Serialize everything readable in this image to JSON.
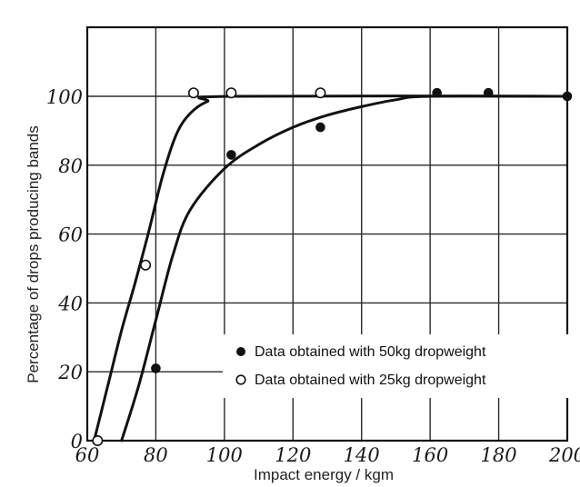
{
  "chart_data": {
    "type": "scatter",
    "title": "",
    "xlabel": "Impact energy / kgm",
    "ylabel": "Percentage of drops producing bands",
    "xlim": [
      60,
      200
    ],
    "ylim": [
      0,
      100
    ],
    "x_ticks": [
      "60",
      "80",
      "100",
      "120",
      "140",
      "160",
      "180",
      "200"
    ],
    "y_ticks": [
      "0",
      "20",
      "40",
      "60",
      "80",
      "100"
    ],
    "grid": true,
    "legend_position": "bottom-right",
    "series": [
      {
        "name": "Data obtained with 50kg dropweight",
        "marker": "filled-circle",
        "color": "#111111",
        "points": [
          [
            80,
            21
          ],
          [
            102,
            83
          ],
          [
            128,
            91
          ],
          [
            162,
            101
          ],
          [
            177,
            101
          ],
          [
            200,
            100
          ]
        ]
      },
      {
        "name": "Data obtained with 25kg dropweight",
        "marker": "open-circle",
        "color": "#111111",
        "points": [
          [
            63,
            0
          ],
          [
            77,
            51
          ],
          [
            91,
            101
          ],
          [
            102,
            101
          ],
          [
            128,
            101
          ]
        ]
      }
    ],
    "fit_curves": [
      {
        "series": "Data obtained with 50kg dropweight",
        "points": [
          [
            70,
            0
          ],
          [
            75,
            16
          ],
          [
            80,
            35
          ],
          [
            85,
            54
          ],
          [
            90,
            67
          ],
          [
            100,
            79
          ],
          [
            110,
            86
          ],
          [
            120,
            91
          ],
          [
            130,
            94.5
          ],
          [
            140,
            97
          ],
          [
            150,
            99
          ],
          [
            160,
            100
          ],
          [
            200,
            100
          ]
        ]
      },
      {
        "series": "Data obtained with 25kg dropweight",
        "points": [
          [
            62,
            0
          ],
          [
            66,
            16
          ],
          [
            70,
            32
          ],
          [
            74,
            46
          ],
          [
            78,
            61
          ],
          [
            82,
            77
          ],
          [
            86,
            89
          ],
          [
            90,
            95
          ],
          [
            95,
            98.5
          ],
          [
            102,
            100
          ],
          [
            200,
            100
          ]
        ]
      }
    ]
  }
}
